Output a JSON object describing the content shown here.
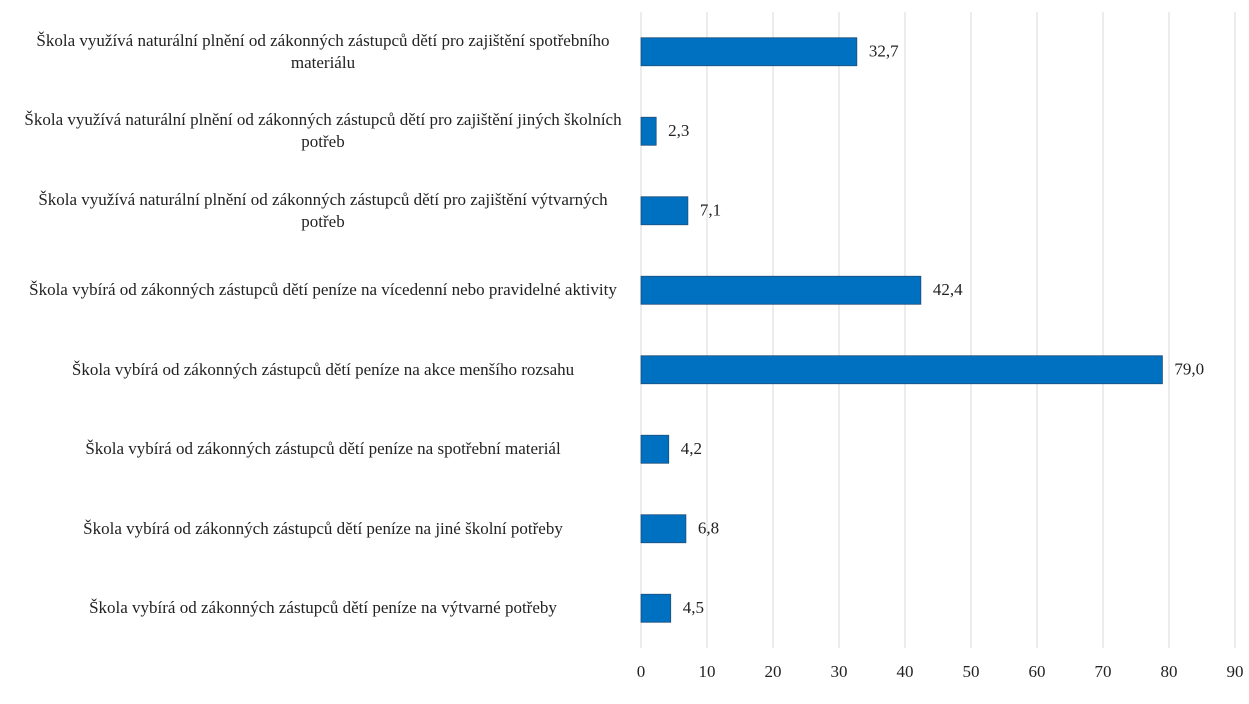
{
  "chart_data": {
    "type": "bar",
    "orientation": "horizontal",
    "categories": [
      "Škola využívá naturální plnění od zákonných zástupců dětí pro zajištění spotřebního materiálu",
      "Škola využívá naturální plnění od zákonných zástupců dětí pro zajištění jiných školních potřeb",
      "Škola využívá naturální plnění od zákonných zástupců dětí pro zajištění výtvarných potřeb",
      "Škola vybírá od zákonných zástupců dětí peníze na vícedenní nebo pravidelné aktivity",
      "Škola vybírá od zákonných zástupců dětí peníze na akce menšího rozsahu",
      "Škola vybírá od zákonných zástupců dětí peníze na spotřební materiál",
      "Škola vybírá od zákonných zástupců dětí peníze na jiné školní potřeby",
      "Škola vybírá od zákonných zástupců dětí peníze na výtvarné potřeby"
    ],
    "values": [
      32.7,
      2.3,
      7.1,
      42.4,
      79.0,
      4.2,
      6.8,
      4.5
    ],
    "value_labels": [
      "32,7",
      "2,3",
      "7,1",
      "42,4",
      "79,0",
      "4,2",
      "6,8",
      "4,5"
    ],
    "color": "#0070c0",
    "xlim": [
      0,
      90
    ],
    "xticks": [
      0,
      10,
      20,
      30,
      40,
      50,
      60,
      70,
      80,
      90
    ],
    "grid": true
  }
}
